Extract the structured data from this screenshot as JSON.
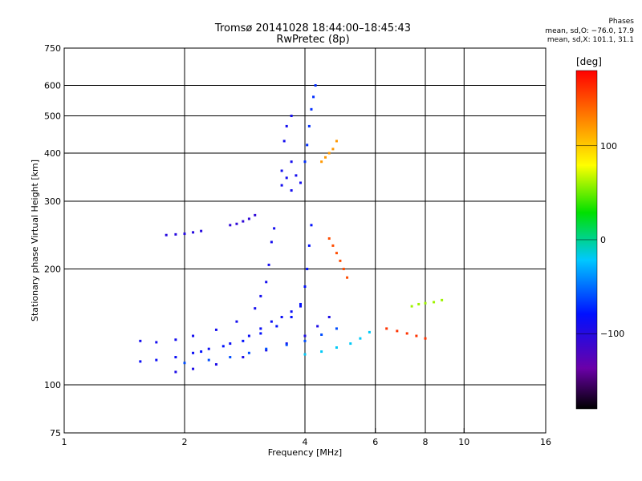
{
  "chart_data": {
    "type": "scatter",
    "title": "Tromsø 20141028 18:44:00–18:45:43",
    "subtitle": "RwPretec (8p)",
    "xlabel": "Frequency [MHz]",
    "ylabel": "Stationary phase Virtual Height [km]",
    "x_scale": "log",
    "y_scale": "log",
    "xlim": [
      1,
      16
    ],
    "ylim": [
      75,
      750
    ],
    "x_ticks": [
      1,
      2,
      4,
      6,
      8,
      10,
      16
    ],
    "x_tick_labels": [
      "1",
      "2",
      "4",
      "6",
      "8",
      "10",
      "16"
    ],
    "y_ticks": [
      75,
      100,
      200,
      300,
      400,
      500,
      600,
      750
    ],
    "y_tick_labels": [
      "75",
      "100",
      "200",
      "300",
      "400",
      "500",
      "600",
      "750"
    ],
    "grid": true,
    "stats": {
      "heading": "Phases",
      "line1": "mean, sd,O: −76.0, 17.9",
      "line2": "mean, sd,X: 101.1, 31.1"
    },
    "colorbar": {
      "unit": "[deg]",
      "ticks": [
        100,
        0,
        -100
      ],
      "tick_labels": [
        "100",
        "0",
        "−100"
      ],
      "range": [
        -180,
        180
      ]
    },
    "traces": [
      {
        "phase": -85,
        "points": [
          [
            1.55,
            115
          ],
          [
            1.7,
            116
          ],
          [
            1.9,
            118
          ],
          [
            2.1,
            121
          ],
          [
            2.3,
            124
          ],
          [
            2.6,
            128
          ],
          [
            2.9,
            134
          ],
          [
            3.1,
            140
          ],
          [
            3.3,
            146
          ],
          [
            3.5,
            150
          ],
          [
            3.7,
            155
          ],
          [
            3.9,
            160
          ]
        ]
      },
      {
        "phase": -90,
        "points": [
          [
            1.55,
            130
          ],
          [
            1.7,
            129
          ],
          [
            1.9,
            131
          ],
          [
            2.1,
            134
          ],
          [
            2.4,
            139
          ],
          [
            2.7,
            146
          ],
          [
            3.0,
            158
          ],
          [
            3.1,
            170
          ],
          [
            3.2,
            185
          ],
          [
            3.25,
            205
          ],
          [
            3.3,
            235
          ],
          [
            3.35,
            255
          ]
        ]
      },
      {
        "phase": -95,
        "points": [
          [
            1.9,
            108
          ],
          [
            2.1,
            110
          ],
          [
            2.4,
            113
          ],
          [
            2.8,
            118
          ],
          [
            3.2,
            123
          ],
          [
            3.6,
            128
          ],
          [
            4.0,
            134
          ],
          [
            4.3,
            142
          ],
          [
            4.6,
            150
          ]
        ]
      },
      {
        "phase": -80,
        "points": [
          [
            2.2,
            122
          ],
          [
            2.5,
            126
          ],
          [
            2.8,
            130
          ],
          [
            3.1,
            136
          ],
          [
            3.4,
            142
          ],
          [
            3.7,
            150
          ],
          [
            3.9,
            162
          ],
          [
            4.0,
            180
          ],
          [
            4.05,
            200
          ],
          [
            4.1,
            230
          ],
          [
            4.15,
            260
          ]
        ]
      },
      {
        "phase": -60,
        "points": [
          [
            2.0,
            114
          ],
          [
            2.3,
            116
          ],
          [
            2.6,
            118
          ],
          [
            2.9,
            121
          ],
          [
            3.2,
            124
          ],
          [
            3.6,
            127
          ],
          [
            4.0,
            130
          ],
          [
            4.4,
            135
          ],
          [
            4.8,
            140
          ]
        ]
      },
      {
        "phase": -20,
        "points": [
          [
            4.0,
            120
          ],
          [
            4.4,
            122
          ],
          [
            4.8,
            125
          ],
          [
            5.2,
            128
          ],
          [
            5.5,
            132
          ],
          [
            5.8,
            137
          ]
        ]
      },
      {
        "phase": -100,
        "points": [
          [
            1.8,
            245
          ],
          [
            1.9,
            246
          ],
          [
            2.0,
            247
          ],
          [
            2.1,
            249
          ],
          [
            2.2,
            251
          ]
        ]
      },
      {
        "phase": -105,
        "points": [
          [
            2.6,
            260
          ],
          [
            2.7,
            262
          ],
          [
            2.8,
            266
          ],
          [
            2.9,
            270
          ],
          [
            3.0,
            276
          ]
        ]
      },
      {
        "phase": -90,
        "points": [
          [
            3.5,
            360
          ],
          [
            3.5,
            330
          ],
          [
            3.6,
            345
          ],
          [
            3.7,
            320
          ],
          [
            3.8,
            350
          ],
          [
            3.9,
            335
          ],
          [
            3.7,
            380
          ],
          [
            3.55,
            430
          ],
          [
            3.6,
            470
          ],
          [
            3.7,
            500
          ]
        ]
      },
      {
        "phase": -70,
        "points": [
          [
            4.0,
            380
          ],
          [
            4.05,
            420
          ],
          [
            4.1,
            470
          ],
          [
            4.15,
            520
          ],
          [
            4.2,
            560
          ],
          [
            4.25,
            600
          ]
        ]
      },
      {
        "phase": 120,
        "points": [
          [
            4.4,
            380
          ],
          [
            4.5,
            390
          ],
          [
            4.6,
            400
          ],
          [
            4.7,
            410
          ],
          [
            4.8,
            430
          ]
        ]
      },
      {
        "phase": 150,
        "points": [
          [
            4.6,
            240
          ],
          [
            4.7,
            230
          ],
          [
            4.8,
            220
          ],
          [
            4.9,
            210
          ],
          [
            5.0,
            200
          ],
          [
            5.1,
            190
          ]
        ]
      },
      {
        "phase": 60,
        "points": [
          [
            7.4,
            160
          ],
          [
            7.7,
            162
          ],
          [
            8.0,
            163
          ],
          [
            8.4,
            164
          ],
          [
            8.8,
            166
          ]
        ]
      },
      {
        "phase": 160,
        "points": [
          [
            6.4,
            140
          ],
          [
            6.8,
            138
          ],
          [
            7.2,
            136
          ],
          [
            7.6,
            134
          ],
          [
            8.0,
            132
          ]
        ]
      }
    ]
  }
}
